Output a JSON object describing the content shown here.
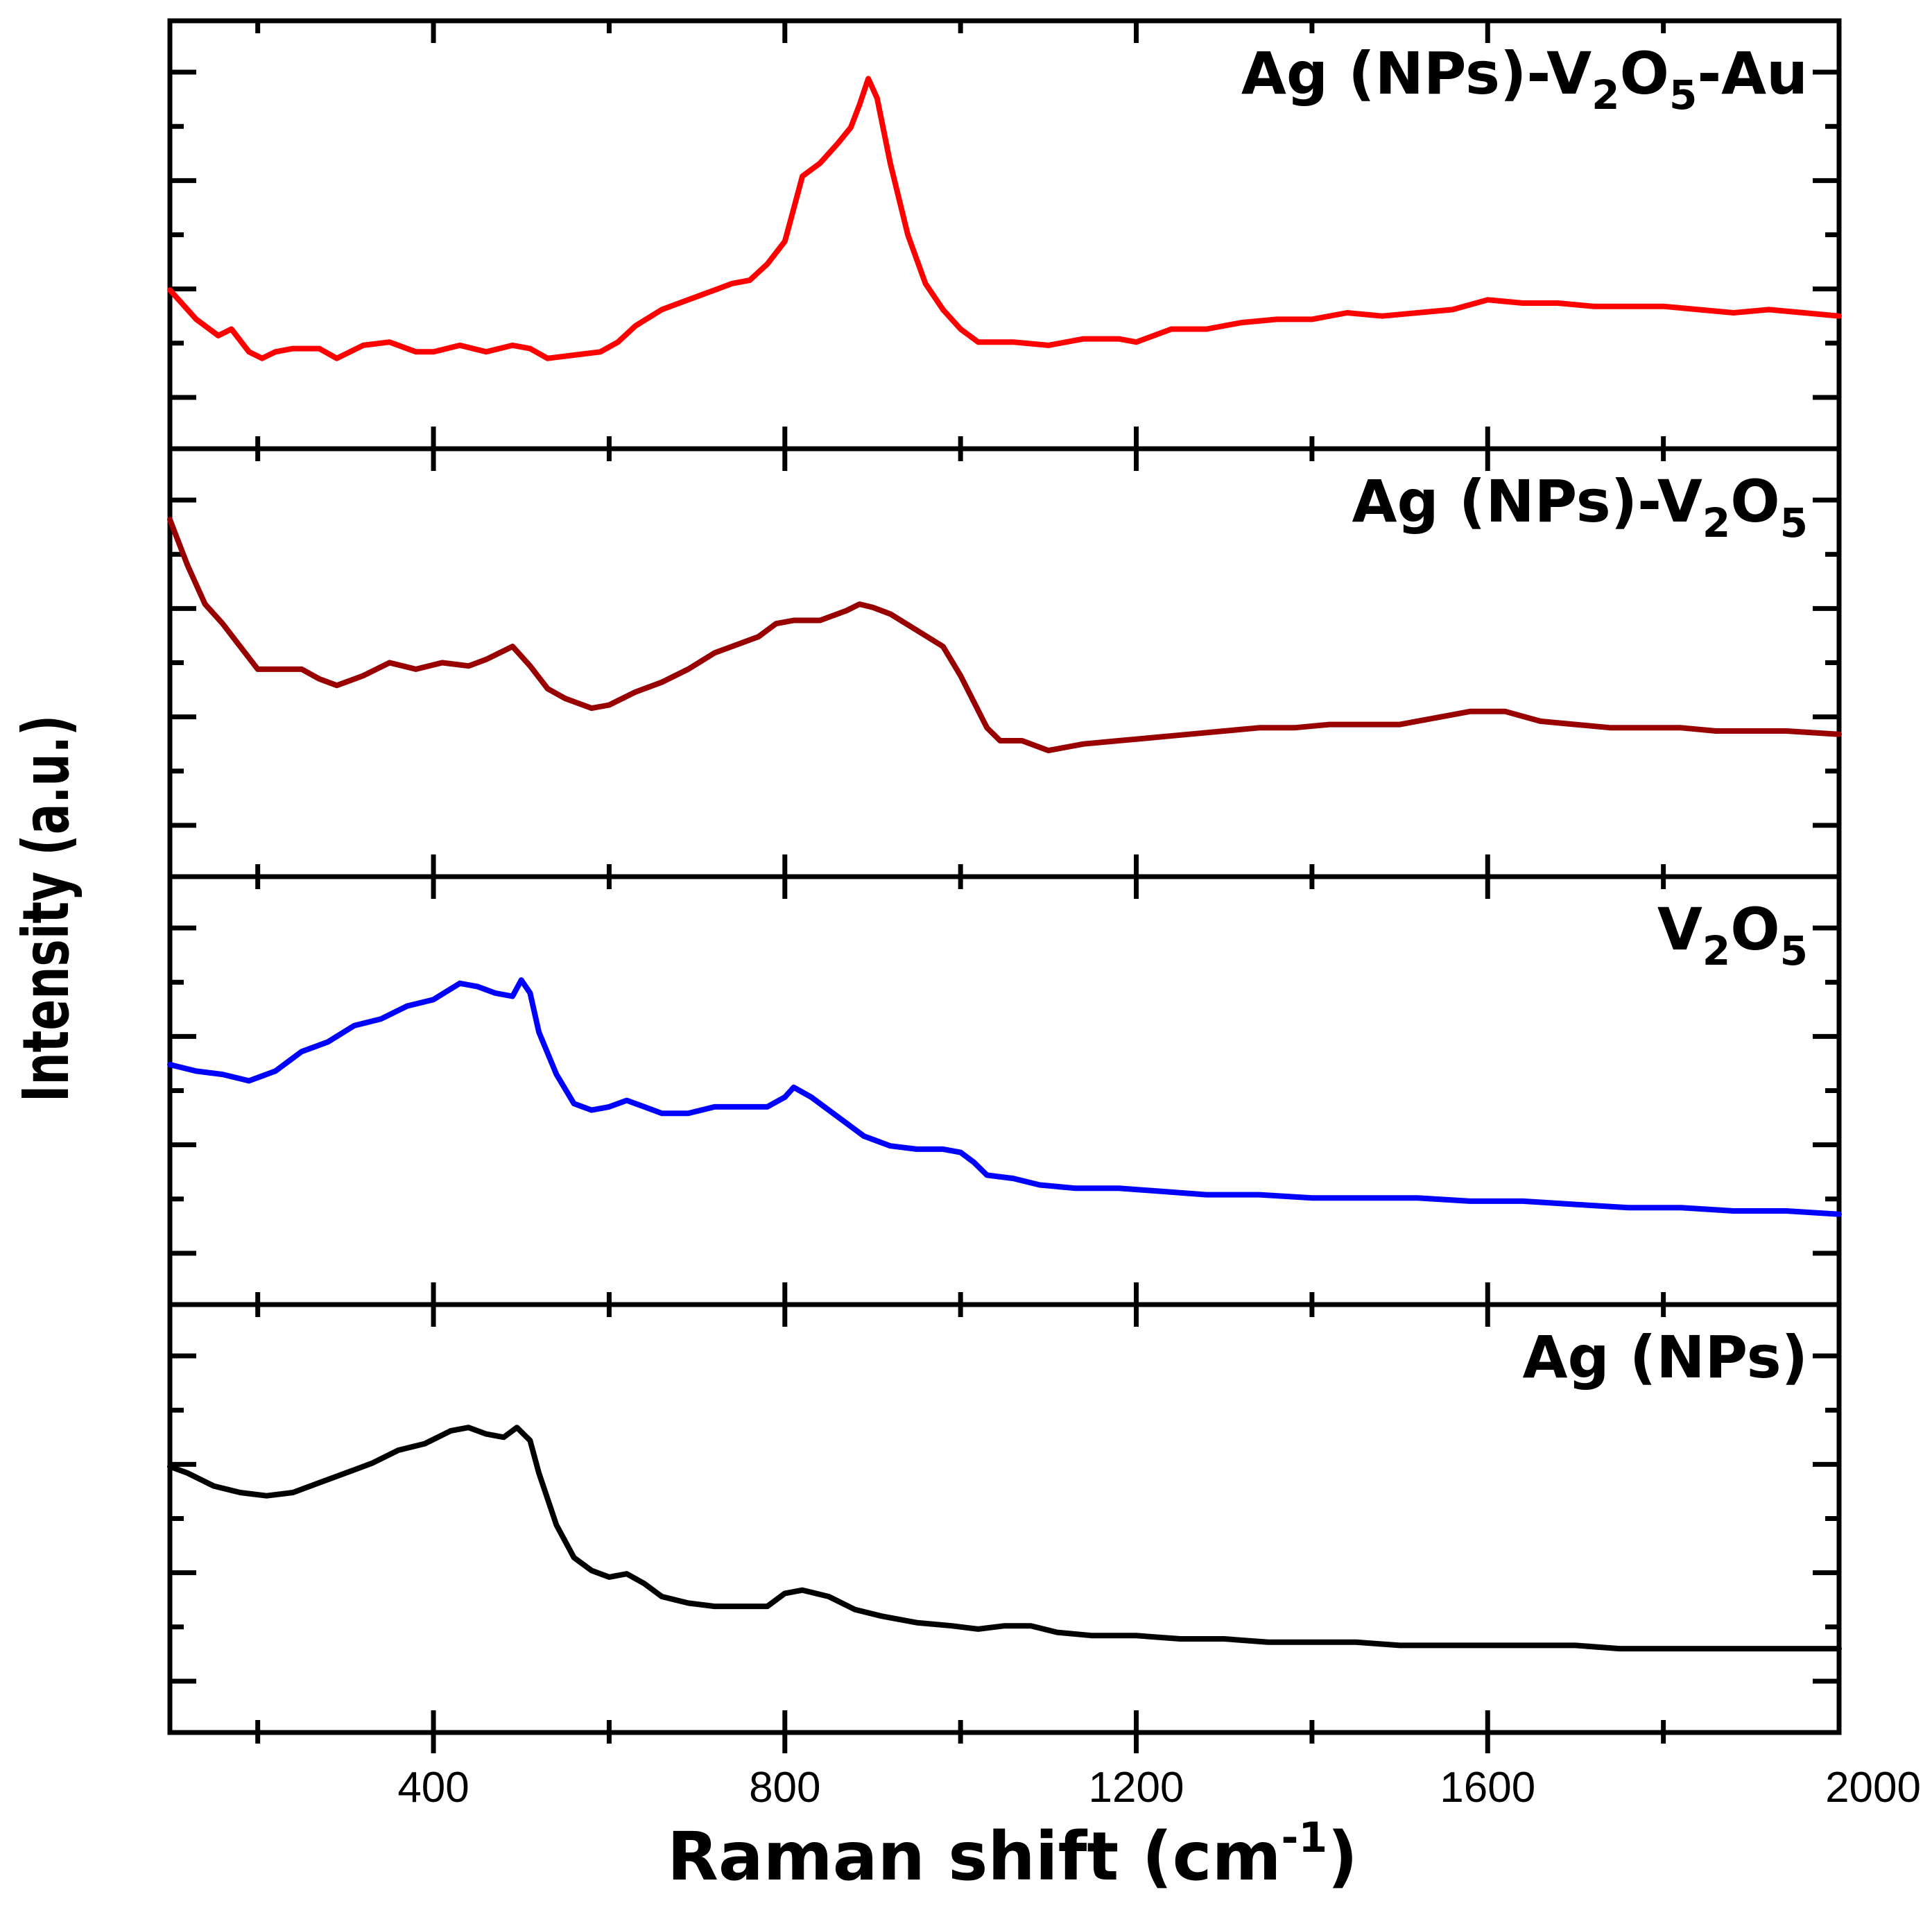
{
  "chart_data": {
    "type": "line",
    "title": "",
    "xlabel": "Raman shift (cm",
    "xlabel_sup": "-1",
    "xlabel_end": ")",
    "ylabel": "Intensity (a.u.)",
    "xlim": [
      100,
      2000
    ],
    "x_ticks": [
      400,
      800,
      1200,
      1600,
      2000
    ],
    "x_tick_labels": [
      "400",
      "800",
      "1200",
      "1600",
      "2000"
    ],
    "layout": "four vertically stacked panels sharing the x axis; y axis unlabeled (arbitrary units, normalized 0-1 per panel)",
    "ylim": [
      0,
      1
    ],
    "series": [
      {
        "name": "Ag (NPs)-V2O5-Au",
        "label_parts": [
          "Ag (NPs)-V",
          "2",
          "O",
          "5",
          "-Au"
        ],
        "color": "#ff0000",
        "points": [
          [
            100,
            0.33
          ],
          [
            130,
            0.24
          ],
          [
            155,
            0.19
          ],
          [
            170,
            0.21
          ],
          [
            190,
            0.14
          ],
          [
            205,
            0.12
          ],
          [
            220,
            0.14
          ],
          [
            240,
            0.15
          ],
          [
            270,
            0.15
          ],
          [
            290,
            0.12
          ],
          [
            320,
            0.16
          ],
          [
            350,
            0.17
          ],
          [
            380,
            0.14
          ],
          [
            400,
            0.14
          ],
          [
            430,
            0.16
          ],
          [
            460,
            0.14
          ],
          [
            490,
            0.16
          ],
          [
            510,
            0.15
          ],
          [
            530,
            0.12
          ],
          [
            560,
            0.13
          ],
          [
            590,
            0.14
          ],
          [
            610,
            0.17
          ],
          [
            630,
            0.22
          ],
          [
            660,
            0.27
          ],
          [
            690,
            0.3
          ],
          [
            720,
            0.33
          ],
          [
            740,
            0.35
          ],
          [
            760,
            0.36
          ],
          [
            780,
            0.41
          ],
          [
            800,
            0.48
          ],
          [
            810,
            0.58
          ],
          [
            820,
            0.68
          ],
          [
            840,
            0.72
          ],
          [
            860,
            0.78
          ],
          [
            875,
            0.83
          ],
          [
            885,
            0.9
          ],
          [
            895,
            0.98
          ],
          [
            905,
            0.92
          ],
          [
            920,
            0.72
          ],
          [
            940,
            0.5
          ],
          [
            960,
            0.35
          ],
          [
            980,
            0.27
          ],
          [
            1000,
            0.21
          ],
          [
            1020,
            0.17
          ],
          [
            1060,
            0.17
          ],
          [
            1100,
            0.16
          ],
          [
            1140,
            0.18
          ],
          [
            1180,
            0.18
          ],
          [
            1200,
            0.17
          ],
          [
            1240,
            0.21
          ],
          [
            1280,
            0.21
          ],
          [
            1320,
            0.23
          ],
          [
            1360,
            0.24
          ],
          [
            1400,
            0.24
          ],
          [
            1440,
            0.26
          ],
          [
            1480,
            0.25
          ],
          [
            1520,
            0.26
          ],
          [
            1560,
            0.27
          ],
          [
            1600,
            0.3
          ],
          [
            1640,
            0.29
          ],
          [
            1680,
            0.29
          ],
          [
            1720,
            0.28
          ],
          [
            1760,
            0.28
          ],
          [
            1800,
            0.28
          ],
          [
            1840,
            0.27
          ],
          [
            1880,
            0.26
          ],
          [
            1920,
            0.27
          ],
          [
            1960,
            0.26
          ],
          [
            2000,
            0.25
          ]
        ]
      },
      {
        "name": "Ag (NPs)-V2O5",
        "label_parts": [
          "Ag (NPs)-V",
          "2",
          "O",
          "5",
          ""
        ],
        "color": "#990000",
        "points": [
          [
            100,
            0.94
          ],
          [
            120,
            0.8
          ],
          [
            140,
            0.68
          ],
          [
            160,
            0.62
          ],
          [
            180,
            0.55
          ],
          [
            200,
            0.48
          ],
          [
            220,
            0.48
          ],
          [
            250,
            0.48
          ],
          [
            270,
            0.45
          ],
          [
            290,
            0.43
          ],
          [
            320,
            0.46
          ],
          [
            350,
            0.5
          ],
          [
            380,
            0.48
          ],
          [
            410,
            0.5
          ],
          [
            440,
            0.49
          ],
          [
            460,
            0.51
          ],
          [
            490,
            0.55
          ],
          [
            510,
            0.49
          ],
          [
            530,
            0.42
          ],
          [
            550,
            0.39
          ],
          [
            580,
            0.36
          ],
          [
            600,
            0.37
          ],
          [
            630,
            0.41
          ],
          [
            660,
            0.44
          ],
          [
            690,
            0.48
          ],
          [
            720,
            0.53
          ],
          [
            750,
            0.56
          ],
          [
            770,
            0.58
          ],
          [
            790,
            0.62
          ],
          [
            810,
            0.63
          ],
          [
            840,
            0.63
          ],
          [
            870,
            0.66
          ],
          [
            885,
            0.68
          ],
          [
            900,
            0.67
          ],
          [
            920,
            0.65
          ],
          [
            950,
            0.6
          ],
          [
            980,
            0.55
          ],
          [
            1000,
            0.46
          ],
          [
            1015,
            0.38
          ],
          [
            1030,
            0.3
          ],
          [
            1045,
            0.26
          ],
          [
            1070,
            0.26
          ],
          [
            1100,
            0.23
          ],
          [
            1140,
            0.25
          ],
          [
            1180,
            0.26
          ],
          [
            1220,
            0.27
          ],
          [
            1260,
            0.28
          ],
          [
            1300,
            0.29
          ],
          [
            1340,
            0.3
          ],
          [
            1380,
            0.3
          ],
          [
            1420,
            0.31
          ],
          [
            1460,
            0.31
          ],
          [
            1500,
            0.31
          ],
          [
            1540,
            0.33
          ],
          [
            1580,
            0.35
          ],
          [
            1620,
            0.35
          ],
          [
            1660,
            0.32
          ],
          [
            1700,
            0.31
          ],
          [
            1740,
            0.3
          ],
          [
            1780,
            0.3
          ],
          [
            1820,
            0.3
          ],
          [
            1860,
            0.29
          ],
          [
            1900,
            0.29
          ],
          [
            1940,
            0.29
          ],
          [
            2000,
            0.28
          ]
        ]
      },
      {
        "name": "V2O5",
        "label_parts": [
          "V",
          "2",
          "O",
          "5",
          ""
        ],
        "color": "#0000ff",
        "points": [
          [
            100,
            0.58
          ],
          [
            130,
            0.56
          ],
          [
            160,
            0.55
          ],
          [
            190,
            0.53
          ],
          [
            220,
            0.56
          ],
          [
            250,
            0.62
          ],
          [
            280,
            0.65
          ],
          [
            310,
            0.7
          ],
          [
            340,
            0.72
          ],
          [
            370,
            0.76
          ],
          [
            400,
            0.78
          ],
          [
            430,
            0.83
          ],
          [
            450,
            0.82
          ],
          [
            470,
            0.8
          ],
          [
            490,
            0.79
          ],
          [
            500,
            0.84
          ],
          [
            510,
            0.8
          ],
          [
            520,
            0.68
          ],
          [
            540,
            0.55
          ],
          [
            560,
            0.46
          ],
          [
            580,
            0.44
          ],
          [
            600,
            0.45
          ],
          [
            620,
            0.47
          ],
          [
            640,
            0.45
          ],
          [
            660,
            0.43
          ],
          [
            690,
            0.43
          ],
          [
            720,
            0.45
          ],
          [
            750,
            0.45
          ],
          [
            780,
            0.45
          ],
          [
            800,
            0.48
          ],
          [
            810,
            0.51
          ],
          [
            830,
            0.48
          ],
          [
            860,
            0.42
          ],
          [
            890,
            0.36
          ],
          [
            920,
            0.33
          ],
          [
            950,
            0.32
          ],
          [
            980,
            0.32
          ],
          [
            1000,
            0.31
          ],
          [
            1015,
            0.28
          ],
          [
            1030,
            0.24
          ],
          [
            1060,
            0.23
          ],
          [
            1090,
            0.21
          ],
          [
            1130,
            0.2
          ],
          [
            1180,
            0.2
          ],
          [
            1230,
            0.19
          ],
          [
            1280,
            0.18
          ],
          [
            1340,
            0.18
          ],
          [
            1400,
            0.17
          ],
          [
            1460,
            0.17
          ],
          [
            1520,
            0.17
          ],
          [
            1580,
            0.16
          ],
          [
            1640,
            0.16
          ],
          [
            1700,
            0.15
          ],
          [
            1760,
            0.14
          ],
          [
            1820,
            0.14
          ],
          [
            1880,
            0.13
          ],
          [
            1940,
            0.13
          ],
          [
            2000,
            0.12
          ]
        ]
      },
      {
        "name": "Ag (NPs)",
        "label_parts": [
          "Ag (NPs)",
          "",
          "",
          "",
          ""
        ],
        "color": "#000000",
        "points": [
          [
            100,
            0.66
          ],
          [
            120,
            0.64
          ],
          [
            150,
            0.6
          ],
          [
            180,
            0.58
          ],
          [
            210,
            0.57
          ],
          [
            240,
            0.58
          ],
          [
            270,
            0.61
          ],
          [
            300,
            0.64
          ],
          [
            330,
            0.67
          ],
          [
            360,
            0.71
          ],
          [
            390,
            0.73
          ],
          [
            420,
            0.77
          ],
          [
            440,
            0.78
          ],
          [
            460,
            0.76
          ],
          [
            480,
            0.75
          ],
          [
            495,
            0.78
          ],
          [
            510,
            0.74
          ],
          [
            520,
            0.64
          ],
          [
            540,
            0.48
          ],
          [
            560,
            0.38
          ],
          [
            580,
            0.34
          ],
          [
            600,
            0.32
          ],
          [
            620,
            0.33
          ],
          [
            640,
            0.3
          ],
          [
            660,
            0.26
          ],
          [
            690,
            0.24
          ],
          [
            720,
            0.23
          ],
          [
            760,
            0.23
          ],
          [
            780,
            0.23
          ],
          [
            800,
            0.27
          ],
          [
            820,
            0.28
          ],
          [
            850,
            0.26
          ],
          [
            880,
            0.22
          ],
          [
            910,
            0.2
          ],
          [
            950,
            0.18
          ],
          [
            990,
            0.17
          ],
          [
            1020,
            0.16
          ],
          [
            1050,
            0.17
          ],
          [
            1080,
            0.17
          ],
          [
            1110,
            0.15
          ],
          [
            1150,
            0.14
          ],
          [
            1200,
            0.14
          ],
          [
            1250,
            0.13
          ],
          [
            1300,
            0.13
          ],
          [
            1350,
            0.12
          ],
          [
            1400,
            0.12
          ],
          [
            1450,
            0.12
          ],
          [
            1500,
            0.11
          ],
          [
            1550,
            0.11
          ],
          [
            1600,
            0.11
          ],
          [
            1650,
            0.11
          ],
          [
            1700,
            0.11
          ],
          [
            1750,
            0.1
          ],
          [
            1800,
            0.1
          ],
          [
            1850,
            0.1
          ],
          [
            1900,
            0.1
          ],
          [
            1950,
            0.1
          ],
          [
            2000,
            0.1
          ]
        ]
      }
    ]
  }
}
